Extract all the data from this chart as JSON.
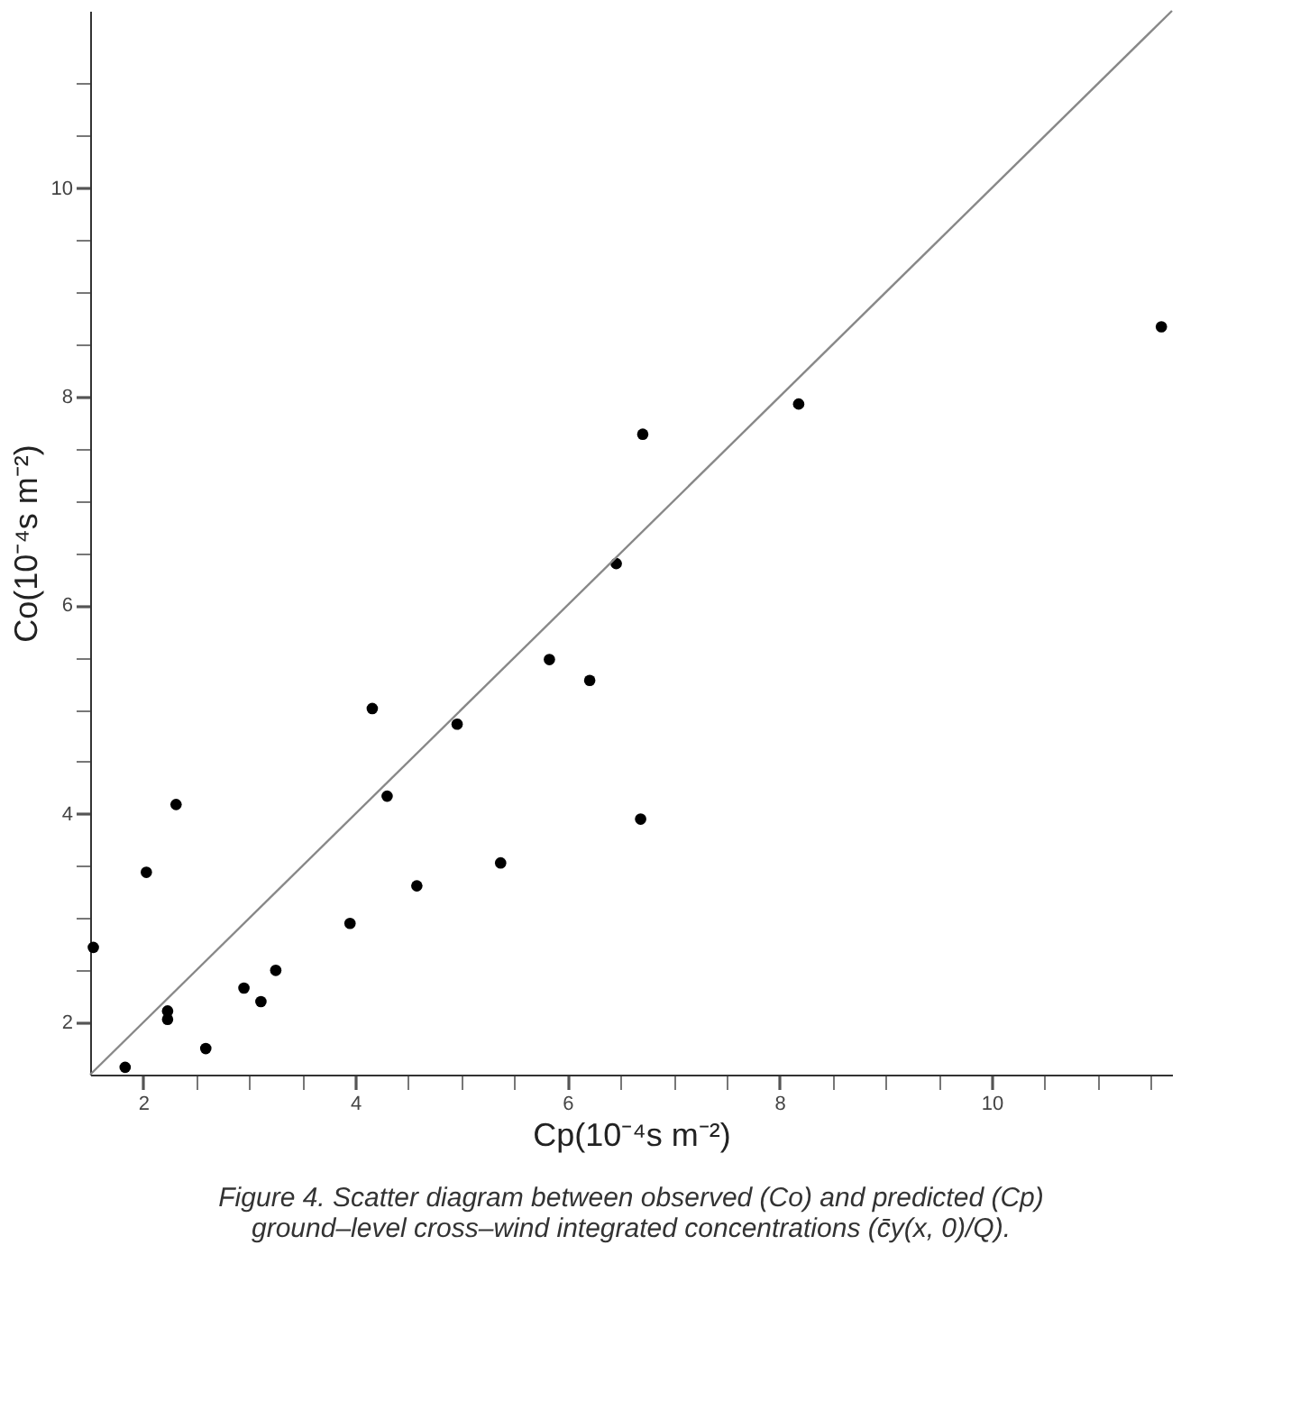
{
  "chart_data": {
    "type": "scatter",
    "xlabel": "Cp(10⁻⁴s m⁻²)",
    "ylabel": "Co(10⁻⁴s m⁻²)",
    "annotations": [
      "Figure 4. Scatter diagram between observed (Co) and predicted (Cp) ground–level cross–wind integrated concentrations (c̄y(x, 0)/Q)."
    ],
    "xlim": [
      1.5,
      11.7
    ],
    "ylim": [
      1.5,
      11.7
    ],
    "xticks": [
      2,
      {
        "value": 2.5,
        "label": null
      },
      {
        "value": 3,
        "label": null
      },
      {
        "value": 3.5,
        "label": null
      },
      4,
      {
        "value": 4.5,
        "label": null
      },
      {
        "value": 5,
        "label": null
      },
      {
        "value": 5.5,
        "label": null
      },
      6,
      {
        "value": 6.5,
        "label": null
      },
      {
        "value": 7,
        "label": null
      },
      {
        "value": 7.5,
        "label": null
      },
      8,
      {
        "value": 8.5,
        "label": null
      },
      {
        "value": 9,
        "label": null
      },
      {
        "value": 9.5,
        "label": null
      },
      10,
      {
        "value": 10.5,
        "label": null
      },
      {
        "value": 11,
        "label": null
      },
      {
        "value": 11.5,
        "label": null
      }
    ],
    "yticks": [
      2,
      {
        "value": 2.5,
        "label": null
      },
      {
        "value": 3,
        "label": null
      },
      {
        "value": 3.5,
        "label": null
      },
      4,
      {
        "value": 4.5,
        "label": null
      },
      {
        "value": 5,
        "label": null
      },
      {
        "value": 5.5,
        "label": null
      },
      6,
      {
        "value": 6.5,
        "label": null
      },
      {
        "value": 7,
        "label": null
      },
      {
        "value": 7.5,
        "label": null
      },
      8,
      {
        "value": 8.5,
        "label": null
      },
      {
        "value": 9,
        "label": null
      },
      {
        "value": 9.5,
        "label": null
      },
      10,
      {
        "value": 10.5,
        "label": null
      },
      {
        "value": 11,
        "label": null
      }
    ],
    "grid": false,
    "marker": "circle",
    "series": [
      {
        "color": "#000000",
        "x": [
          1.53,
          1.83,
          2.03,
          2.31,
          2.23,
          2.23,
          2.59,
          2.95,
          3.11,
          3.25,
          3.95,
          4.16,
          4.3,
          4.58,
          4.96,
          5.37,
          5.83,
          6.21,
          6.69,
          6.46,
          6.71,
          8.18,
          11.6
        ],
        "values": [
          2.72,
          1.57,
          3.44,
          4.09,
          2.11,
          2.03,
          1.75,
          2.33,
          2.2,
          2.5,
          2.95,
          5.01,
          4.17,
          3.31,
          4.86,
          3.53,
          5.48,
          5.28,
          3.95,
          6.4,
          7.64,
          7.93,
          8.67
        ]
      },
      {
        "type": "line",
        "color": "#888888",
        "line_style": "solid",
        "marker": "none",
        "x": [
          1.5,
          11.7
        ],
        "values": [
          1.5,
          11.7
        ]
      }
    ]
  }
}
